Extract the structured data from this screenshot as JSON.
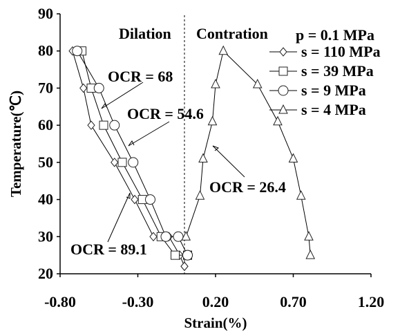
{
  "chart_data": {
    "type": "line",
    "xlabel": "Strain(%)",
    "ylabel": "Temperature(℃)",
    "xlim": [
      -0.8,
      1.2
    ],
    "ylim": [
      20,
      90
    ],
    "xticks": [
      "-0.80",
      "-0.30",
      "0.20",
      "0.70",
      "1.20"
    ],
    "yticks": [
      "20",
      "30",
      "40",
      "50",
      "60",
      "70",
      "80",
      "90"
    ],
    "grid": false,
    "legend_title": "p = 0.1 MPa",
    "legend_position": "top-right",
    "region_labels": {
      "left": "Dilation",
      "right": "Contration"
    },
    "divider_x": 0.0,
    "series": [
      {
        "name": "s = 110 MPa",
        "marker": "diamond",
        "x": [
          -0.72,
          -0.65,
          -0.6,
          -0.45,
          -0.32,
          -0.2,
          -0.1,
          -0.03,
          0.0,
          0.0
        ],
        "y": [
          80,
          70,
          60,
          50,
          40,
          30,
          30,
          25,
          22,
          22
        ]
      },
      {
        "name": "s = 39 MPa",
        "marker": "square",
        "x": [
          -0.66,
          -0.6,
          -0.52,
          -0.4,
          -0.27,
          -0.15,
          -0.06,
          0.02,
          0.02
        ],
        "y": [
          80,
          70,
          60,
          50,
          40,
          30,
          25,
          25,
          25
        ]
      },
      {
        "name": "s = 9 MPa",
        "marker": "circle",
        "x": [
          -0.69,
          -0.55,
          -0.45,
          -0.33,
          -0.22,
          -0.12,
          -0.04,
          0.02,
          0.02
        ],
        "y": [
          80,
          70,
          60,
          50,
          40,
          30,
          30,
          25,
          25
        ]
      },
      {
        "name": "s = 4 MPa",
        "marker": "triangle",
        "x": [
          0.01,
          0.1,
          0.12,
          0.18,
          0.2,
          0.25,
          0.47,
          0.6,
          0.7,
          0.75,
          0.8,
          0.81
        ],
        "y": [
          30,
          41,
          51,
          61,
          71,
          80,
          71,
          61,
          51,
          41,
          30,
          25
        ]
      }
    ],
    "annotations": [
      {
        "text": "OCR = 68"
      },
      {
        "text": "OCR = 54.6"
      },
      {
        "text": "OCR = 26.4"
      },
      {
        "text": "OCR = 89.1"
      }
    ]
  }
}
